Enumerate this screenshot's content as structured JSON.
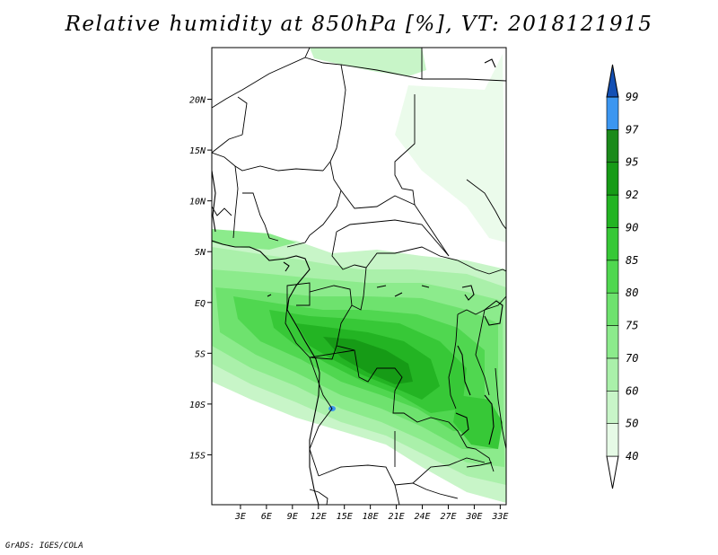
{
  "title": "Relative humidity at 850hPa [%], VT: 2018121915",
  "credit": "GrADS: IGES/COLA",
  "map": {
    "variable": "Relative humidity",
    "level": "850hPa",
    "units": "%",
    "valid_time": "2018121915",
    "lon_range": [
      0,
      34
    ],
    "lat_range": [
      -20,
      25
    ],
    "lat_ticks": [
      {
        "value": 20,
        "label": "20N"
      },
      {
        "value": 15,
        "label": "15N"
      },
      {
        "value": 10,
        "label": "10N"
      },
      {
        "value": 5,
        "label": "5N"
      },
      {
        "value": 0,
        "label": "EQ"
      },
      {
        "value": -5,
        "label": "5S"
      },
      {
        "value": -10,
        "label": "10S"
      },
      {
        "value": -15,
        "label": "15S"
      }
    ],
    "lon_ticks": [
      {
        "value": 3,
        "label": "3E"
      },
      {
        "value": 6,
        "label": "6E"
      },
      {
        "value": 9,
        "label": "9E"
      },
      {
        "value": 12,
        "label": "12E"
      },
      {
        "value": 15,
        "label": "15E"
      },
      {
        "value": 18,
        "label": "18E"
      },
      {
        "value": 21,
        "label": "21E"
      },
      {
        "value": 24,
        "label": "24E"
      },
      {
        "value": 27,
        "label": "27E"
      },
      {
        "value": 30,
        "label": "30E"
      },
      {
        "value": 33,
        "label": "33E"
      }
    ]
  },
  "colorbar": {
    "levels": [
      {
        "label": "40",
        "color": "#e6fae6"
      },
      {
        "label": "50",
        "color": "#c8f5c8"
      },
      {
        "label": "60",
        "color": "#aaf0aa"
      },
      {
        "label": "70",
        "color": "#8ceb8c"
      },
      {
        "label": "75",
        "color": "#6ee26e"
      },
      {
        "label": "80",
        "color": "#50d750"
      },
      {
        "label": "85",
        "color": "#37c837"
      },
      {
        "label": "90",
        "color": "#23b423"
      },
      {
        "label": "92",
        "color": "#169b16"
      },
      {
        "label": "95",
        "color": "#1b8a1b"
      },
      {
        "label": "97",
        "color": "#3c96f0"
      },
      {
        "label": "99",
        "color": "#1e6ed2"
      }
    ],
    "bottom_color": "#ffffff",
    "top_color": "#1450b4"
  }
}
